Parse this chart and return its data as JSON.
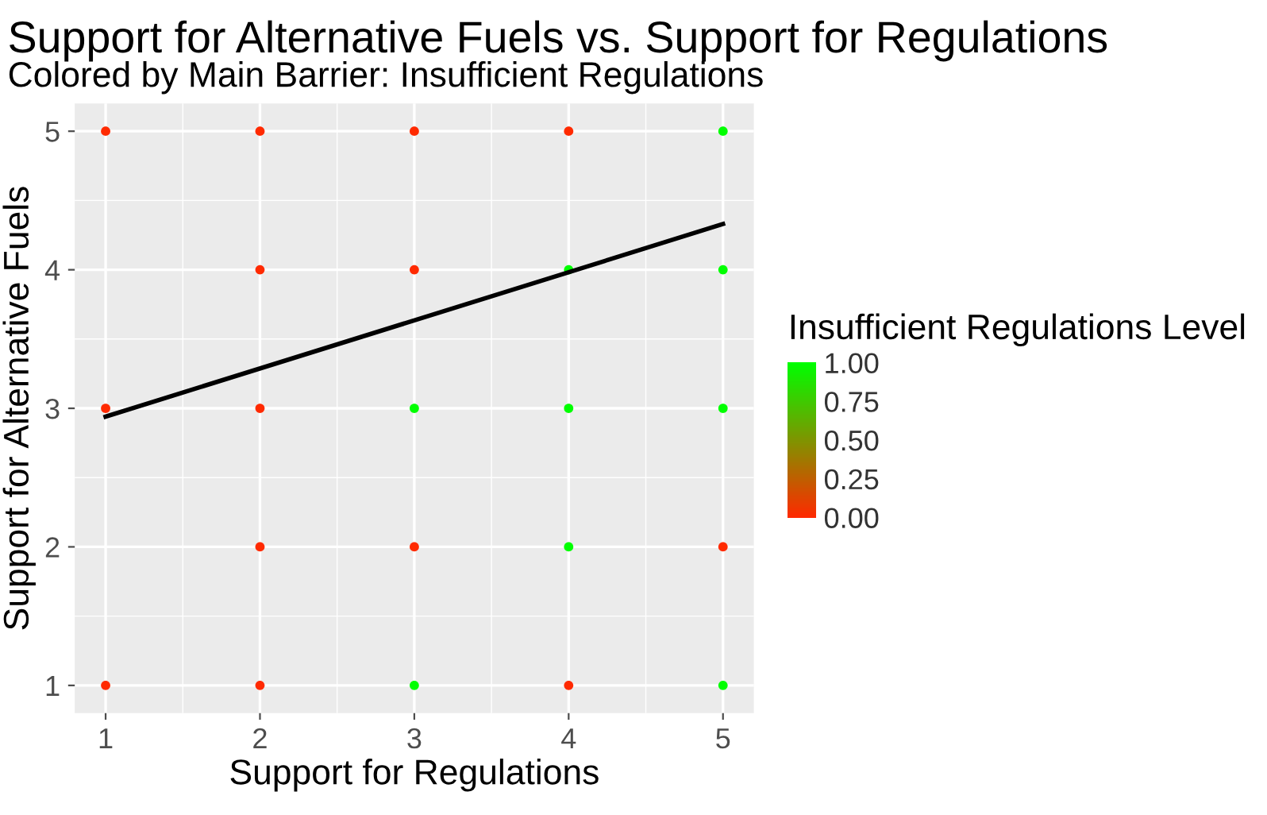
{
  "chart_data": {
    "type": "scatter",
    "title": "Support for Alternative Fuels vs. Support for Regulations",
    "subtitle": "Colored by Main Barrier: Insufficient Regulations",
    "xlabel": "Support for Regulations",
    "ylabel": "Support for Alternative Fuels",
    "clabel": "Insufficient Regulations Level",
    "series": [
      {
        "x": [
          1,
          2,
          3,
          4,
          5,
          2,
          3,
          4,
          5,
          1,
          2,
          3,
          4,
          5,
          2,
          3,
          4,
          5,
          1,
          2,
          3,
          4,
          5
        ],
        "values": [
          5,
          5,
          5,
          5,
          5,
          4,
          4,
          4,
          4,
          3,
          3,
          3,
          3,
          3,
          2,
          2,
          2,
          2,
          1,
          1,
          1,
          1,
          1
        ],
        "cvalues": [
          0,
          0,
          0,
          0,
          1,
          0,
          0,
          1,
          1,
          0,
          0,
          1,
          1,
          1,
          0,
          0,
          1,
          0,
          0,
          0,
          1,
          0,
          1
        ],
        "marker": "circle",
        "colors": [
          "#ff2a00",
          "#ff2a00",
          "#ff2a00",
          "#ff2a00",
          "#00ff00",
          "#ff2a00",
          "#ff2a00",
          "#00ff00",
          "#00ff00",
          "#ff2a00",
          "#ff2a00",
          "#00ff00",
          "#00ff00",
          "#00ff00",
          "#ff2a00",
          "#ff2a00",
          "#00ff00",
          "#ff2a00",
          "#ff2a00",
          "#ff2a00",
          "#00ff00",
          "#ff2a00",
          "#00ff00"
        ]
      },
      {
        "type": "line",
        "x": [
          1,
          5
        ],
        "values": [
          2.94,
          4.33
        ],
        "color": "#000000"
      }
    ],
    "clim": [
      0,
      1
    ],
    "cticks": [
      {
        "value": 0,
        "label": "0.00"
      },
      {
        "value": 0.25,
        "label": "0.25"
      },
      {
        "value": 0.5,
        "label": "0.50"
      },
      {
        "value": 0.75,
        "label": "0.75"
      },
      {
        "value": 1,
        "label": "1.00"
      }
    ],
    "xlim": [
      0.8,
      5.2
    ],
    "ylim": [
      0.8,
      5.2
    ],
    "xticks": [
      1,
      2,
      3,
      4,
      5
    ],
    "yticks": [
      1,
      2,
      3,
      4,
      5
    ],
    "grid": true
  }
}
